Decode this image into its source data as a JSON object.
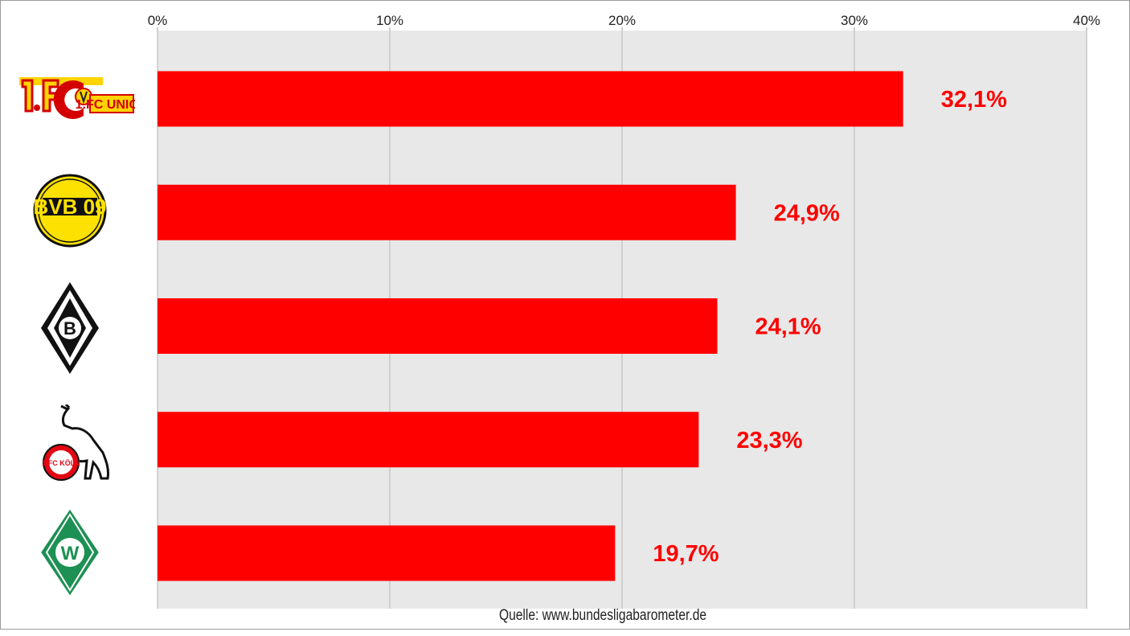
{
  "chart_data": {
    "type": "bar",
    "orientation": "horizontal",
    "categories": [
      "1. FC Union Berlin",
      "Borussia Dortmund",
      "Borussia Mönchengladbach",
      "1. FC Köln",
      "SV Werder Bremen"
    ],
    "values": [
      32.1,
      24.9,
      24.1,
      23.3,
      19.7
    ],
    "value_labels": [
      "32,1%",
      "24,9%",
      "24,1%",
      "23,3%",
      "19,7%"
    ],
    "xlim": [
      0,
      40
    ],
    "x_ticks": [
      0,
      10,
      20,
      30,
      40
    ],
    "x_tick_labels": [
      "0%",
      "10%",
      "20%",
      "30%",
      "40%"
    ],
    "x_axis_position": "top",
    "grid": true,
    "legend": false,
    "bar_color": "#ff0000",
    "plot_background": "#e8e8e8",
    "category_display": "club-logos"
  },
  "logos": [
    {
      "icon": "union-berlin-crest-icon",
      "text": "1.FC UNION"
    },
    {
      "icon": "bvb-crest-icon",
      "text": "BVB 09"
    },
    {
      "icon": "gladbach-crest-icon",
      "text": "B"
    },
    {
      "icon": "koeln-crest-icon",
      "text": "1.FC KÖLN"
    },
    {
      "icon": "werder-crest-icon",
      "text": "W"
    }
  ],
  "source": "Quelle: www.bundesligabarometer.de"
}
